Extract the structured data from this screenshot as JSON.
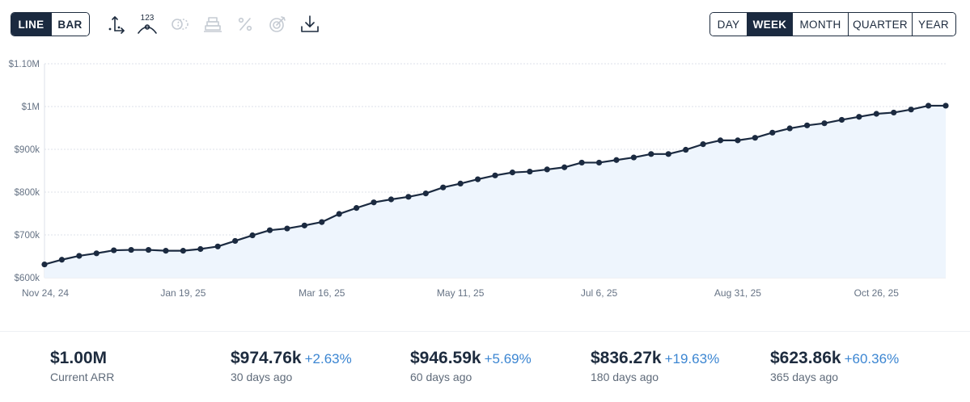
{
  "toolbar": {
    "chart_type_options": [
      "LINE",
      "BAR"
    ],
    "active_chart_type": "LINE",
    "tools": [
      {
        "name": "axis-toggle-icon"
      },
      {
        "name": "data-labels-icon",
        "label": "123"
      },
      {
        "name": "compare-icon"
      },
      {
        "name": "stack-icon"
      },
      {
        "name": "percent-icon"
      },
      {
        "name": "goal-target-icon"
      },
      {
        "name": "download-icon"
      }
    ],
    "period_options": [
      "DAY",
      "WEEK",
      "MONTH",
      "QUARTER",
      "YEAR"
    ],
    "active_period": "WEEK"
  },
  "chart_data": {
    "type": "area",
    "title": "",
    "xlabel": "",
    "ylabel": "",
    "ylim": [
      600000,
      1100000
    ],
    "y_ticks": [
      600000,
      700000,
      800000,
      900000,
      1000000,
      1100000
    ],
    "y_tick_labels": [
      "$600k",
      "$700k",
      "$800k",
      "$900k",
      "$1M",
      "$1.10M"
    ],
    "x_tick_labels": [
      {
        "index": 0,
        "label": "Nov 24, 24"
      },
      {
        "index": 8,
        "label": "Jan 19, 25"
      },
      {
        "index": 16,
        "label": "Mar 16, 25"
      },
      {
        "index": 24,
        "label": "May 11, 25"
      },
      {
        "index": 32,
        "label": "Jul 6, 25"
      },
      {
        "index": 40,
        "label": "Aug 31, 25"
      },
      {
        "index": 48,
        "label": "Oct 26, 25"
      }
    ],
    "grid": true,
    "series": [
      {
        "name": "ARR",
        "color": "#1b2a40",
        "fill": "#eef5fd",
        "values": [
          631000,
          642000,
          651000,
          657000,
          664000,
          665000,
          665000,
          663000,
          663000,
          667000,
          673000,
          686000,
          699000,
          711000,
          715000,
          722000,
          730000,
          749000,
          763000,
          776000,
          783000,
          789000,
          797000,
          811000,
          820000,
          830000,
          839000,
          846000,
          848000,
          853000,
          858000,
          869000,
          869000,
          875000,
          881000,
          889000,
          889000,
          899000,
          912000,
          921000,
          921000,
          927000,
          939000,
          949000,
          956000,
          961000,
          969000,
          976000,
          983000,
          986000,
          993000,
          1002000,
          1002000
        ]
      }
    ]
  },
  "stats": [
    {
      "value": "$1.00M",
      "change": "",
      "label": "Current ARR"
    },
    {
      "value": "$974.76k",
      "change": "+2.63%",
      "label": "30 days ago"
    },
    {
      "value": "$946.59k",
      "change": "+5.69%",
      "label": "60 days ago"
    },
    {
      "value": "$836.27k",
      "change": "+19.63%",
      "label": "180 days ago"
    },
    {
      "value": "$623.86k",
      "change": "+60.36%",
      "label": "365 days ago"
    }
  ],
  "colors": {
    "primary": "#1b2a40",
    "accent_positive": "#3c86d2",
    "area_fill": "#eef5fd",
    "grid": "#dde2e8"
  }
}
